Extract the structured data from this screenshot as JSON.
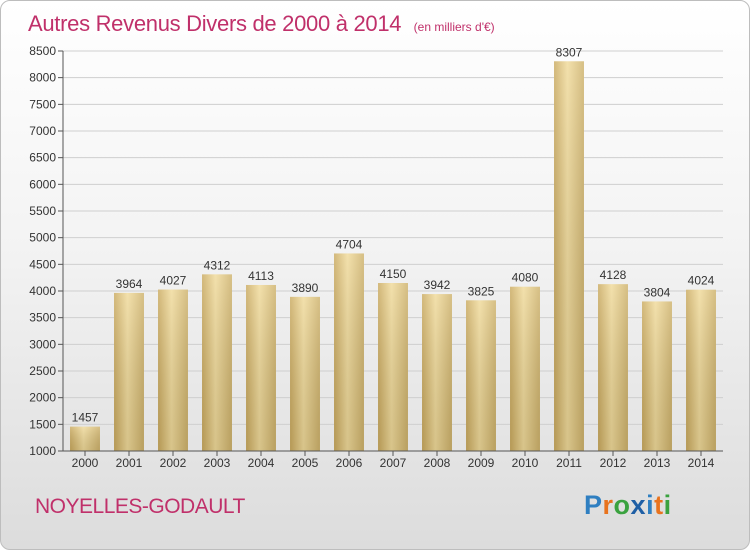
{
  "title": "Autres Revenus Divers de 2000 à 2014",
  "unit_note": "(en milliers d'€)",
  "location": "NOYELLES-GODAULT",
  "logo": {
    "text": "Proxiti",
    "colors": [
      "#2f7fc1",
      "#e8731e",
      "#3aa23f",
      "#1f5fa5",
      "#2f7fc1",
      "#e8731e",
      "#3aa23f"
    ]
  },
  "chart_data": {
    "type": "bar",
    "title": "Autres Revenus Divers de 2000 à 2014",
    "ylabel": "(en milliers d'€)",
    "xlabel": "",
    "categories": [
      "2000",
      "2001",
      "2002",
      "2003",
      "2004",
      "2005",
      "2006",
      "2007",
      "2008",
      "2009",
      "2010",
      "2011",
      "2012",
      "2013",
      "2014"
    ],
    "values": [
      1457,
      3964,
      4027,
      4312,
      4113,
      3890,
      4704,
      4150,
      3942,
      3825,
      4080,
      8307,
      4128,
      3804,
      4024
    ],
    "ylim": [
      1000,
      8500
    ],
    "yticks": [
      1000,
      1500,
      2000,
      2500,
      3000,
      3500,
      4000,
      4500,
      5000,
      5500,
      6000,
      6500,
      7000,
      7500,
      8000,
      8500
    ],
    "grid": true,
    "bar_color": "#dcc27e"
  }
}
